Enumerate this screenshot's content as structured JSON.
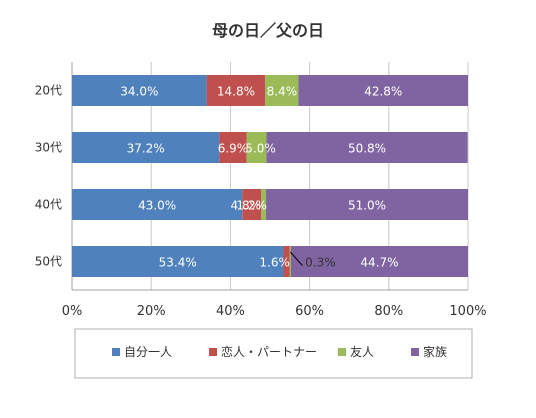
{
  "chart_data": {
    "type": "bar",
    "orientation": "horizontal",
    "stacked": "percent",
    "title": "母の日／父の日",
    "categories": [
      "20代",
      "30代",
      "40代",
      "50代"
    ],
    "series": [
      {
        "name": "自分一人",
        "color": "#4f81bd",
        "values": [
          34.0,
          37.2,
          43.0,
          53.4
        ],
        "labels": [
          "34.0%",
          "37.2%",
          "43.0%",
          "53.4%"
        ]
      },
      {
        "name": "恋人・パートナー",
        "color": "#c0504d",
        "values": [
          14.8,
          6.9,
          4.8,
          1.6
        ],
        "labels": [
          "14.8%",
          "6.9%",
          "4.8%",
          "1.6%"
        ]
      },
      {
        "name": "友人",
        "color": "#9bbb59",
        "values": [
          8.4,
          5.0,
          1.2,
          0.3
        ],
        "labels": [
          "8.4%",
          "5.0%",
          "1.2%",
          "0.3%"
        ]
      },
      {
        "name": "家族",
        "color": "#8064a2",
        "values": [
          42.8,
          50.8,
          51.0,
          44.7
        ],
        "labels": [
          "42.8%",
          "50.8%",
          "51.0%",
          "44.7%"
        ]
      }
    ],
    "xaxis": {
      "ticks": [
        "0%",
        "20%",
        "40%",
        "60%",
        "80%",
        "100%"
      ],
      "range": [
        0,
        100
      ]
    },
    "grid": true,
    "legend": "bottom"
  }
}
